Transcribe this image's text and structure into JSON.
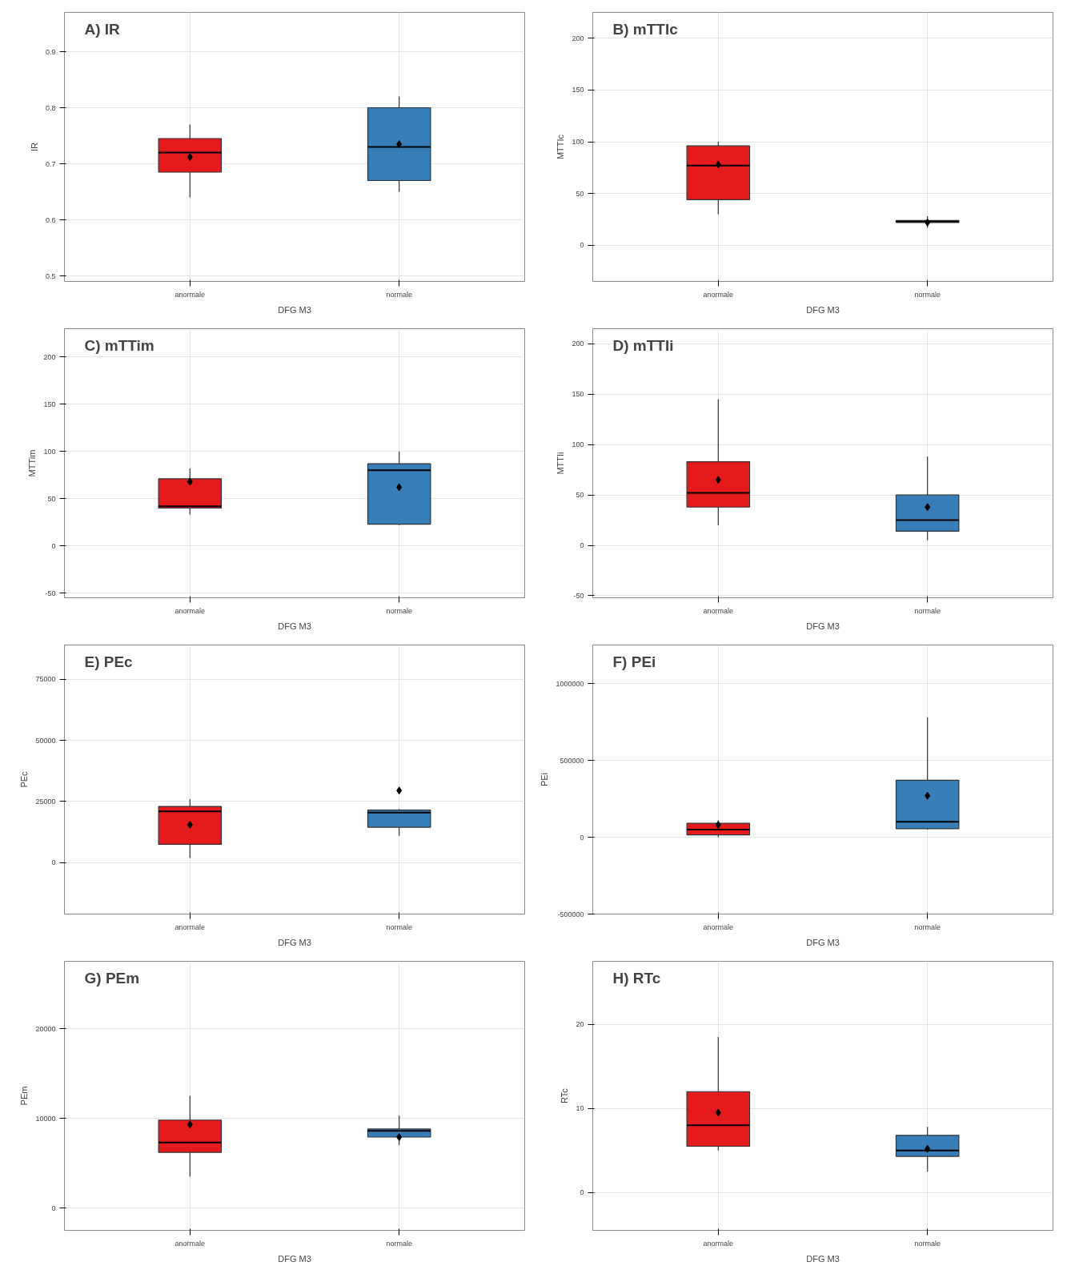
{
  "chart_data": [
    {
      "type": "box",
      "title": "A) IR",
      "xlabel": "DFG M3",
      "ylabel": "IR",
      "categories": [
        "anormale",
        "normale"
      ],
      "colors": [
        "#e41a1c",
        "#377eb8"
      ],
      "ylim": [
        0.49,
        0.97
      ],
      "yticks": [
        0.5,
        0.6,
        0.7,
        0.8,
        0.9
      ],
      "grid": true,
      "boxes": [
        {
          "low": 0.64,
          "q1": 0.685,
          "median": 0.72,
          "q3": 0.745,
          "high": 0.77,
          "mean": 0.712
        },
        {
          "low": 0.65,
          "q1": 0.67,
          "median": 0.73,
          "q3": 0.8,
          "high": 0.82,
          "mean": 0.735
        }
      ]
    },
    {
      "type": "box",
      "title": "B) mTTIc",
      "xlabel": "DFG M3",
      "ylabel": "MTTIc",
      "categories": [
        "anormale",
        "normale"
      ],
      "colors": [
        "#e41a1c",
        "#377eb8"
      ],
      "ylim": [
        -35,
        225
      ],
      "yticks": [
        0,
        50,
        100,
        150,
        200
      ],
      "grid": true,
      "boxes": [
        {
          "low": 30,
          "q1": 44,
          "median": 77,
          "q3": 96,
          "high": 100,
          "mean": 78
        },
        {
          "low": 17,
          "q1": 22,
          "median": 23,
          "q3": 24,
          "high": 28,
          "mean": 22
        }
      ]
    },
    {
      "type": "box",
      "title": "C) mTTim",
      "xlabel": "DFG M3",
      "ylabel": "MTTim",
      "categories": [
        "anormale",
        "normale"
      ],
      "colors": [
        "#e41a1c",
        "#377eb8"
      ],
      "ylim": [
        -55,
        230
      ],
      "yticks": [
        -50,
        0,
        50,
        100,
        150,
        200
      ],
      "grid": true,
      "boxes": [
        {
          "low": 33,
          "q1": 40,
          "median": 42,
          "q3": 71,
          "high": 82,
          "mean": 68
        },
        {
          "low": 22,
          "q1": 23,
          "median": 80,
          "q3": 87,
          "high": 100,
          "mean": 62
        }
      ]
    },
    {
      "type": "box",
      "title": "D) mTTIi",
      "xlabel": "DFG M3",
      "ylabel": "MTTIi",
      "categories": [
        "anormale",
        "normale"
      ],
      "colors": [
        "#e41a1c",
        "#377eb8"
      ],
      "ylim": [
        -52,
        215
      ],
      "yticks": [
        -50,
        0,
        50,
        100,
        150,
        200
      ],
      "grid": true,
      "boxes": [
        {
          "low": 20,
          "q1": 38,
          "median": 52,
          "q3": 83,
          "high": 145,
          "mean": 65
        },
        {
          "low": 5,
          "q1": 14,
          "median": 25,
          "q3": 50,
          "high": 88,
          "mean": 38
        }
      ]
    },
    {
      "type": "box",
      "title": "E) PEc",
      "xlabel": "DFG M3",
      "ylabel": "PEc",
      "categories": [
        "anormale",
        "normale"
      ],
      "colors": [
        "#e41a1c",
        "#377eb8"
      ],
      "ylim": [
        -21000,
        89000
      ],
      "yticks": [
        0,
        25000,
        50000,
        75000
      ],
      "grid": true,
      "boxes": [
        {
          "low": 2000,
          "q1": 7500,
          "median": 21000,
          "q3": 23000,
          "high": 26000,
          "mean": 15500
        },
        {
          "low": 11000,
          "q1": 14500,
          "median": 20500,
          "q3": 21500,
          "high": 22000,
          "mean": 29500
        }
      ]
    },
    {
      "type": "box",
      "title": "F) PEi",
      "xlabel": "DFG M3",
      "ylabel": "PEi",
      "categories": [
        "anormale",
        "normale"
      ],
      "colors": [
        "#e41a1c",
        "#377eb8"
      ],
      "ylim": [
        -500000,
        1250000
      ],
      "yticks": [
        -500000,
        0,
        500000,
        1000000
      ],
      "grid": true,
      "boxes": [
        {
          "low": 0,
          "q1": 15000,
          "median": 50000,
          "q3": 90000,
          "high": 110000,
          "mean": 80000
        },
        {
          "low": 50000,
          "q1": 55000,
          "median": 100000,
          "q3": 370000,
          "high": 780000,
          "mean": 270000
        }
      ]
    },
    {
      "type": "box",
      "title": "G) PEm",
      "xlabel": "DFG M3",
      "ylabel": "PEm",
      "categories": [
        "anormale",
        "normale"
      ],
      "colors": [
        "#e41a1c",
        "#377eb8"
      ],
      "ylim": [
        -2500,
        27500
      ],
      "yticks": [
        0,
        10000,
        20000
      ],
      "grid": true,
      "boxes": [
        {
          "low": 3500,
          "q1": 6200,
          "median": 7300,
          "q3": 9800,
          "high": 12500,
          "mean": 9300
        },
        {
          "low": 7000,
          "q1": 7900,
          "median": 8600,
          "q3": 8800,
          "high": 10300,
          "mean": 7900
        }
      ]
    },
    {
      "type": "box",
      "title": "H) RTc",
      "xlabel": "DFG M3",
      "ylabel": "RTc",
      "categories": [
        "anormale",
        "normale"
      ],
      "colors": [
        "#e41a1c",
        "#377eb8"
      ],
      "ylim": [
        -4.5,
        27.5
      ],
      "yticks": [
        0,
        10,
        20
      ],
      "grid": true,
      "boxes": [
        {
          "low": 5,
          "q1": 5.5,
          "median": 8,
          "q3": 12,
          "high": 18.5,
          "mean": 9.5
        },
        {
          "low": 2.5,
          "q1": 4.3,
          "median": 5,
          "q3": 6.8,
          "high": 7.8,
          "mean": 5.2
        }
      ]
    }
  ]
}
